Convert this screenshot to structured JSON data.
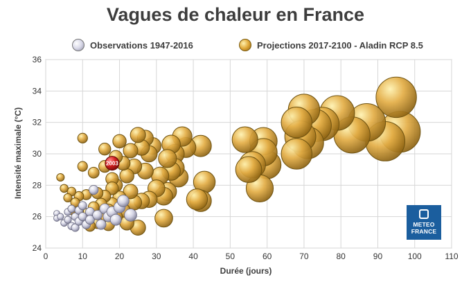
{
  "colors": {
    "observations": "#d8d8e8",
    "projections": "#d9a23a",
    "highlight": "#cc1f1f",
    "logo_bg": "#1b5e9e"
  },
  "logo": {
    "line1": "METEO",
    "line2": "FRANCE"
  },
  "chart_data": {
    "type": "scatter",
    "bubble": true,
    "title": "Vagues de chaleur en France",
    "xlabel": "Durée (jours)",
    "ylabel": "Intensité maximale (°C)",
    "xlim": [
      0,
      110
    ],
    "ylim": [
      24,
      36
    ],
    "xticks": [
      0,
      10,
      20,
      30,
      40,
      50,
      60,
      70,
      80,
      90,
      100,
      110
    ],
    "yticks": [
      24,
      26,
      28,
      30,
      32,
      34,
      36
    ],
    "grid": true,
    "legend_position": "top",
    "series": [
      {
        "name": "Observations 1947-2016",
        "points": [
          {
            "x": 3,
            "y": 26.2
          },
          {
            "x": 3,
            "y": 25.9
          },
          {
            "x": 4,
            "y": 26.0
          },
          {
            "x": 5,
            "y": 25.6
          },
          {
            "x": 6,
            "y": 26.3
          },
          {
            "x": 6,
            "y": 25.8
          },
          {
            "x": 7,
            "y": 26.5
          },
          {
            "x": 7,
            "y": 25.4
          },
          {
            "x": 8,
            "y": 26.0
          },
          {
            "x": 8,
            "y": 25.3
          },
          {
            "x": 9,
            "y": 26.4
          },
          {
            "x": 9,
            "y": 25.7
          },
          {
            "x": 10,
            "y": 26.7
          },
          {
            "x": 10,
            "y": 26.0
          },
          {
            "x": 11,
            "y": 25.5
          },
          {
            "x": 12,
            "y": 26.3
          },
          {
            "x": 12,
            "y": 25.8
          },
          {
            "x": 13,
            "y": 27.7
          },
          {
            "x": 14,
            "y": 26.1
          },
          {
            "x": 15,
            "y": 25.5
          },
          {
            "x": 16,
            "y": 26.5
          },
          {
            "x": 17,
            "y": 26.0
          },
          {
            "x": 18,
            "y": 26.3
          },
          {
            "x": 19,
            "y": 25.8
          },
          {
            "x": 20,
            "y": 26.6
          },
          {
            "x": 21,
            "y": 27.0
          },
          {
            "x": 23,
            "y": 26.1
          }
        ]
      },
      {
        "name": "Projections 2017-2100 - Aladin RCP 8.5",
        "points": [
          {
            "x": 4,
            "y": 28.5
          },
          {
            "x": 5,
            "y": 27.8
          },
          {
            "x": 6,
            "y": 27.2
          },
          {
            "x": 7,
            "y": 27.6
          },
          {
            "x": 7,
            "y": 26.4
          },
          {
            "x": 8,
            "y": 26.9
          },
          {
            "x": 9,
            "y": 27.3
          },
          {
            "x": 9,
            "y": 26.3
          },
          {
            "x": 10,
            "y": 31.0
          },
          {
            "x": 10,
            "y": 29.2
          },
          {
            "x": 11,
            "y": 27.4
          },
          {
            "x": 11,
            "y": 26.2
          },
          {
            "x": 12,
            "y": 25.4
          },
          {
            "x": 13,
            "y": 28.8
          },
          {
            "x": 13,
            "y": 26.6
          },
          {
            "x": 14,
            "y": 27.5
          },
          {
            "x": 14,
            "y": 25.6
          },
          {
            "x": 15,
            "y": 26.8
          },
          {
            "x": 15,
            "y": 25.9
          },
          {
            "x": 16,
            "y": 30.3
          },
          {
            "x": 16,
            "y": 29.2
          },
          {
            "x": 16,
            "y": 27.3
          },
          {
            "x": 17,
            "y": 26.4
          },
          {
            "x": 17,
            "y": 25.5
          },
          {
            "x": 18,
            "y": 28.4
          },
          {
            "x": 18,
            "y": 27.8
          },
          {
            "x": 18,
            "y": 26.8
          },
          {
            "x": 19,
            "y": 29.8
          },
          {
            "x": 19,
            "y": 28.0
          },
          {
            "x": 19,
            "y": 26.0
          },
          {
            "x": 20,
            "y": 30.8
          },
          {
            "x": 20,
            "y": 27.2
          },
          {
            "x": 21,
            "y": 29.4
          },
          {
            "x": 21,
            "y": 26.4
          },
          {
            "x": 22,
            "y": 28.6
          },
          {
            "x": 22,
            "y": 25.6
          },
          {
            "x": 23,
            "y": 30.2
          },
          {
            "x": 23,
            "y": 27.6
          },
          {
            "x": 24,
            "y": 29.2
          },
          {
            "x": 24,
            "y": 26.9
          },
          {
            "x": 25,
            "y": 31.2
          },
          {
            "x": 25,
            "y": 25.3
          },
          {
            "x": 26,
            "y": 30.4
          },
          {
            "x": 26,
            "y": 27.0
          },
          {
            "x": 27,
            "y": 31.0
          },
          {
            "x": 27,
            "y": 28.9
          },
          {
            "x": 28,
            "y": 30.0
          },
          {
            "x": 28,
            "y": 27.1
          },
          {
            "x": 29,
            "y": 30.5
          },
          {
            "x": 30,
            "y": 27.8
          },
          {
            "x": 31,
            "y": 28.6
          },
          {
            "x": 32,
            "y": 27.3
          },
          {
            "x": 32,
            "y": 25.9
          },
          {
            "x": 33,
            "y": 29.7
          },
          {
            "x": 33,
            "y": 27.6
          },
          {
            "x": 34,
            "y": 30.6
          },
          {
            "x": 34,
            "y": 28.9
          },
          {
            "x": 35,
            "y": 30.0
          },
          {
            "x": 35,
            "y": 29.1
          },
          {
            "x": 36,
            "y": 28.5
          },
          {
            "x": 37,
            "y": 31.1
          },
          {
            "x": 38,
            "y": 30.4
          },
          {
            "x": 41,
            "y": 27.1
          },
          {
            "x": 42,
            "y": 30.5
          },
          {
            "x": 42,
            "y": 27.0
          },
          {
            "x": 43,
            "y": 28.2
          },
          {
            "x": 54,
            "y": 30.9
          },
          {
            "x": 55,
            "y": 29.0
          },
          {
            "x": 56,
            "y": 29.3
          },
          {
            "x": 58,
            "y": 27.8
          },
          {
            "x": 59,
            "y": 30.8
          },
          {
            "x": 59,
            "y": 30.1
          },
          {
            "x": 60,
            "y": 29.3
          },
          {
            "x": 68,
            "y": 32.0
          },
          {
            "x": 68,
            "y": 30.0
          },
          {
            "x": 69,
            "y": 31.1
          },
          {
            "x": 70,
            "y": 32.8
          },
          {
            "x": 71,
            "y": 30.7
          },
          {
            "x": 73,
            "y": 31.8
          },
          {
            "x": 75,
            "y": 31.9
          },
          {
            "x": 79,
            "y": 32.6
          },
          {
            "x": 83,
            "y": 31.2
          },
          {
            "x": 87,
            "y": 32.0
          },
          {
            "x": 92,
            "y": 30.8
          },
          {
            "x": 95,
            "y": 33.6
          },
          {
            "x": 96,
            "y": 31.4
          }
        ]
      }
    ],
    "annotations": [
      {
        "text": "2003",
        "x": 18,
        "y": 29.4
      }
    ]
  }
}
